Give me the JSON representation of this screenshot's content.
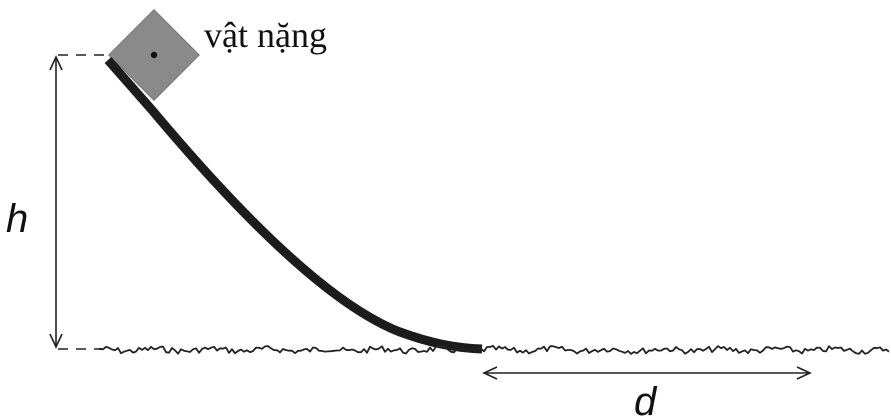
{
  "labels": {
    "block": "vật nặng",
    "height": "h",
    "distance": "d"
  },
  "colors": {
    "block_fill": "#8a8a8a",
    "ramp": "#1c1c1c",
    "ground": "#222222",
    "lines": "#222222"
  }
}
